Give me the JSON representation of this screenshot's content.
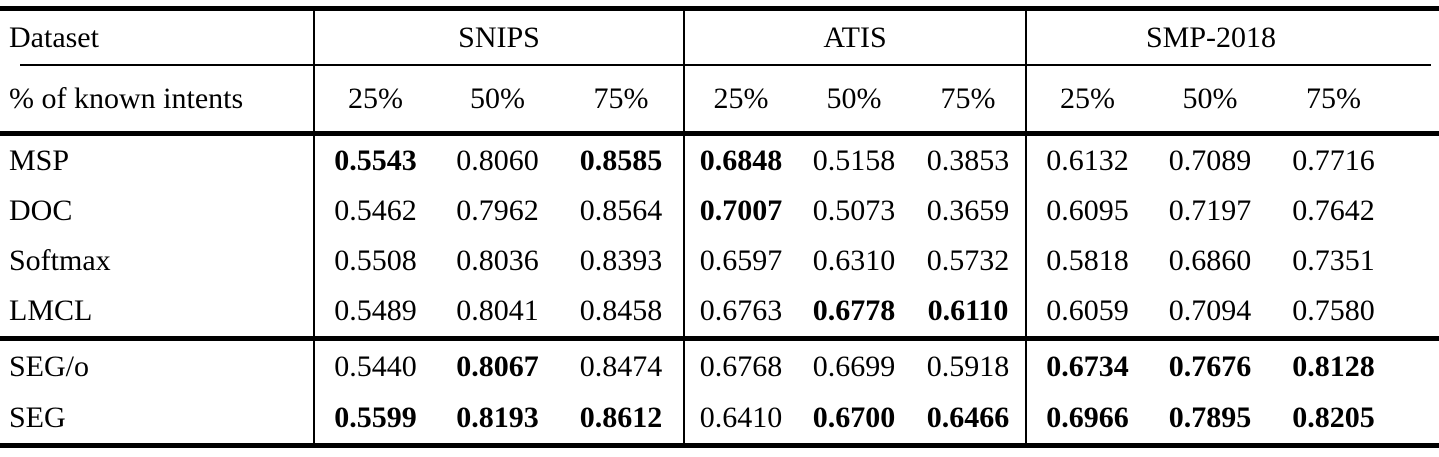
{
  "table": {
    "colors": {
      "text": "#000000",
      "rule": "#000000",
      "background": "#ffffff"
    },
    "header": {
      "dataset_label": "Dataset",
      "known_intents_label": "% of known intents",
      "groups": [
        {
          "name": "SNIPS",
          "cols": [
            "25%",
            "50%",
            "75%"
          ]
        },
        {
          "name": "ATIS",
          "cols": [
            "25%",
            "50%",
            "75%"
          ]
        },
        {
          "name": "SMP-2018",
          "cols": [
            "25%",
            "50%",
            "75%"
          ]
        }
      ]
    },
    "sections": [
      {
        "rows": [
          {
            "label": "MSP",
            "values": [
              "0.5543",
              "0.8060",
              "0.8585",
              "0.6848",
              "0.5158",
              "0.3853",
              "0.6132",
              "0.7089",
              "0.7716"
            ],
            "bold": [
              true,
              false,
              true,
              true,
              false,
              false,
              false,
              false,
              false
            ]
          },
          {
            "label": "DOC",
            "values": [
              "0.5462",
              "0.7962",
              "0.8564",
              "0.7007",
              "0.5073",
              "0.3659",
              "0.6095",
              "0.7197",
              "0.7642"
            ],
            "bold": [
              false,
              false,
              false,
              true,
              false,
              false,
              false,
              false,
              false
            ]
          },
          {
            "label": "Softmax",
            "values": [
              "0.5508",
              "0.8036",
              "0.8393",
              "0.6597",
              "0.6310",
              "0.5732",
              "0.5818",
              "0.6860",
              "0.7351"
            ],
            "bold": [
              false,
              false,
              false,
              false,
              false,
              false,
              false,
              false,
              false
            ]
          },
          {
            "label": "LMCL",
            "values": [
              "0.5489",
              "0.8041",
              "0.8458",
              "0.6763",
              "0.6778",
              "0.6110",
              "0.6059",
              "0.7094",
              "0.7580"
            ],
            "bold": [
              false,
              false,
              false,
              false,
              true,
              true,
              false,
              false,
              false
            ]
          }
        ]
      },
      {
        "rows": [
          {
            "label": "SEG/o",
            "values": [
              "0.5440",
              "0.8067",
              "0.8474",
              "0.6768",
              "0.6699",
              "0.5918",
              "0.6734",
              "0.7676",
              "0.8128"
            ],
            "bold": [
              false,
              true,
              false,
              false,
              false,
              false,
              true,
              true,
              true
            ]
          },
          {
            "label": "SEG",
            "values": [
              "0.5599",
              "0.8193",
              "0.8612",
              "0.6410",
              "0.6700",
              "0.6466",
              "0.6966",
              "0.7895",
              "0.8205"
            ],
            "bold": [
              true,
              true,
              true,
              false,
              true,
              true,
              true,
              true,
              true
            ]
          }
        ]
      }
    ]
  }
}
